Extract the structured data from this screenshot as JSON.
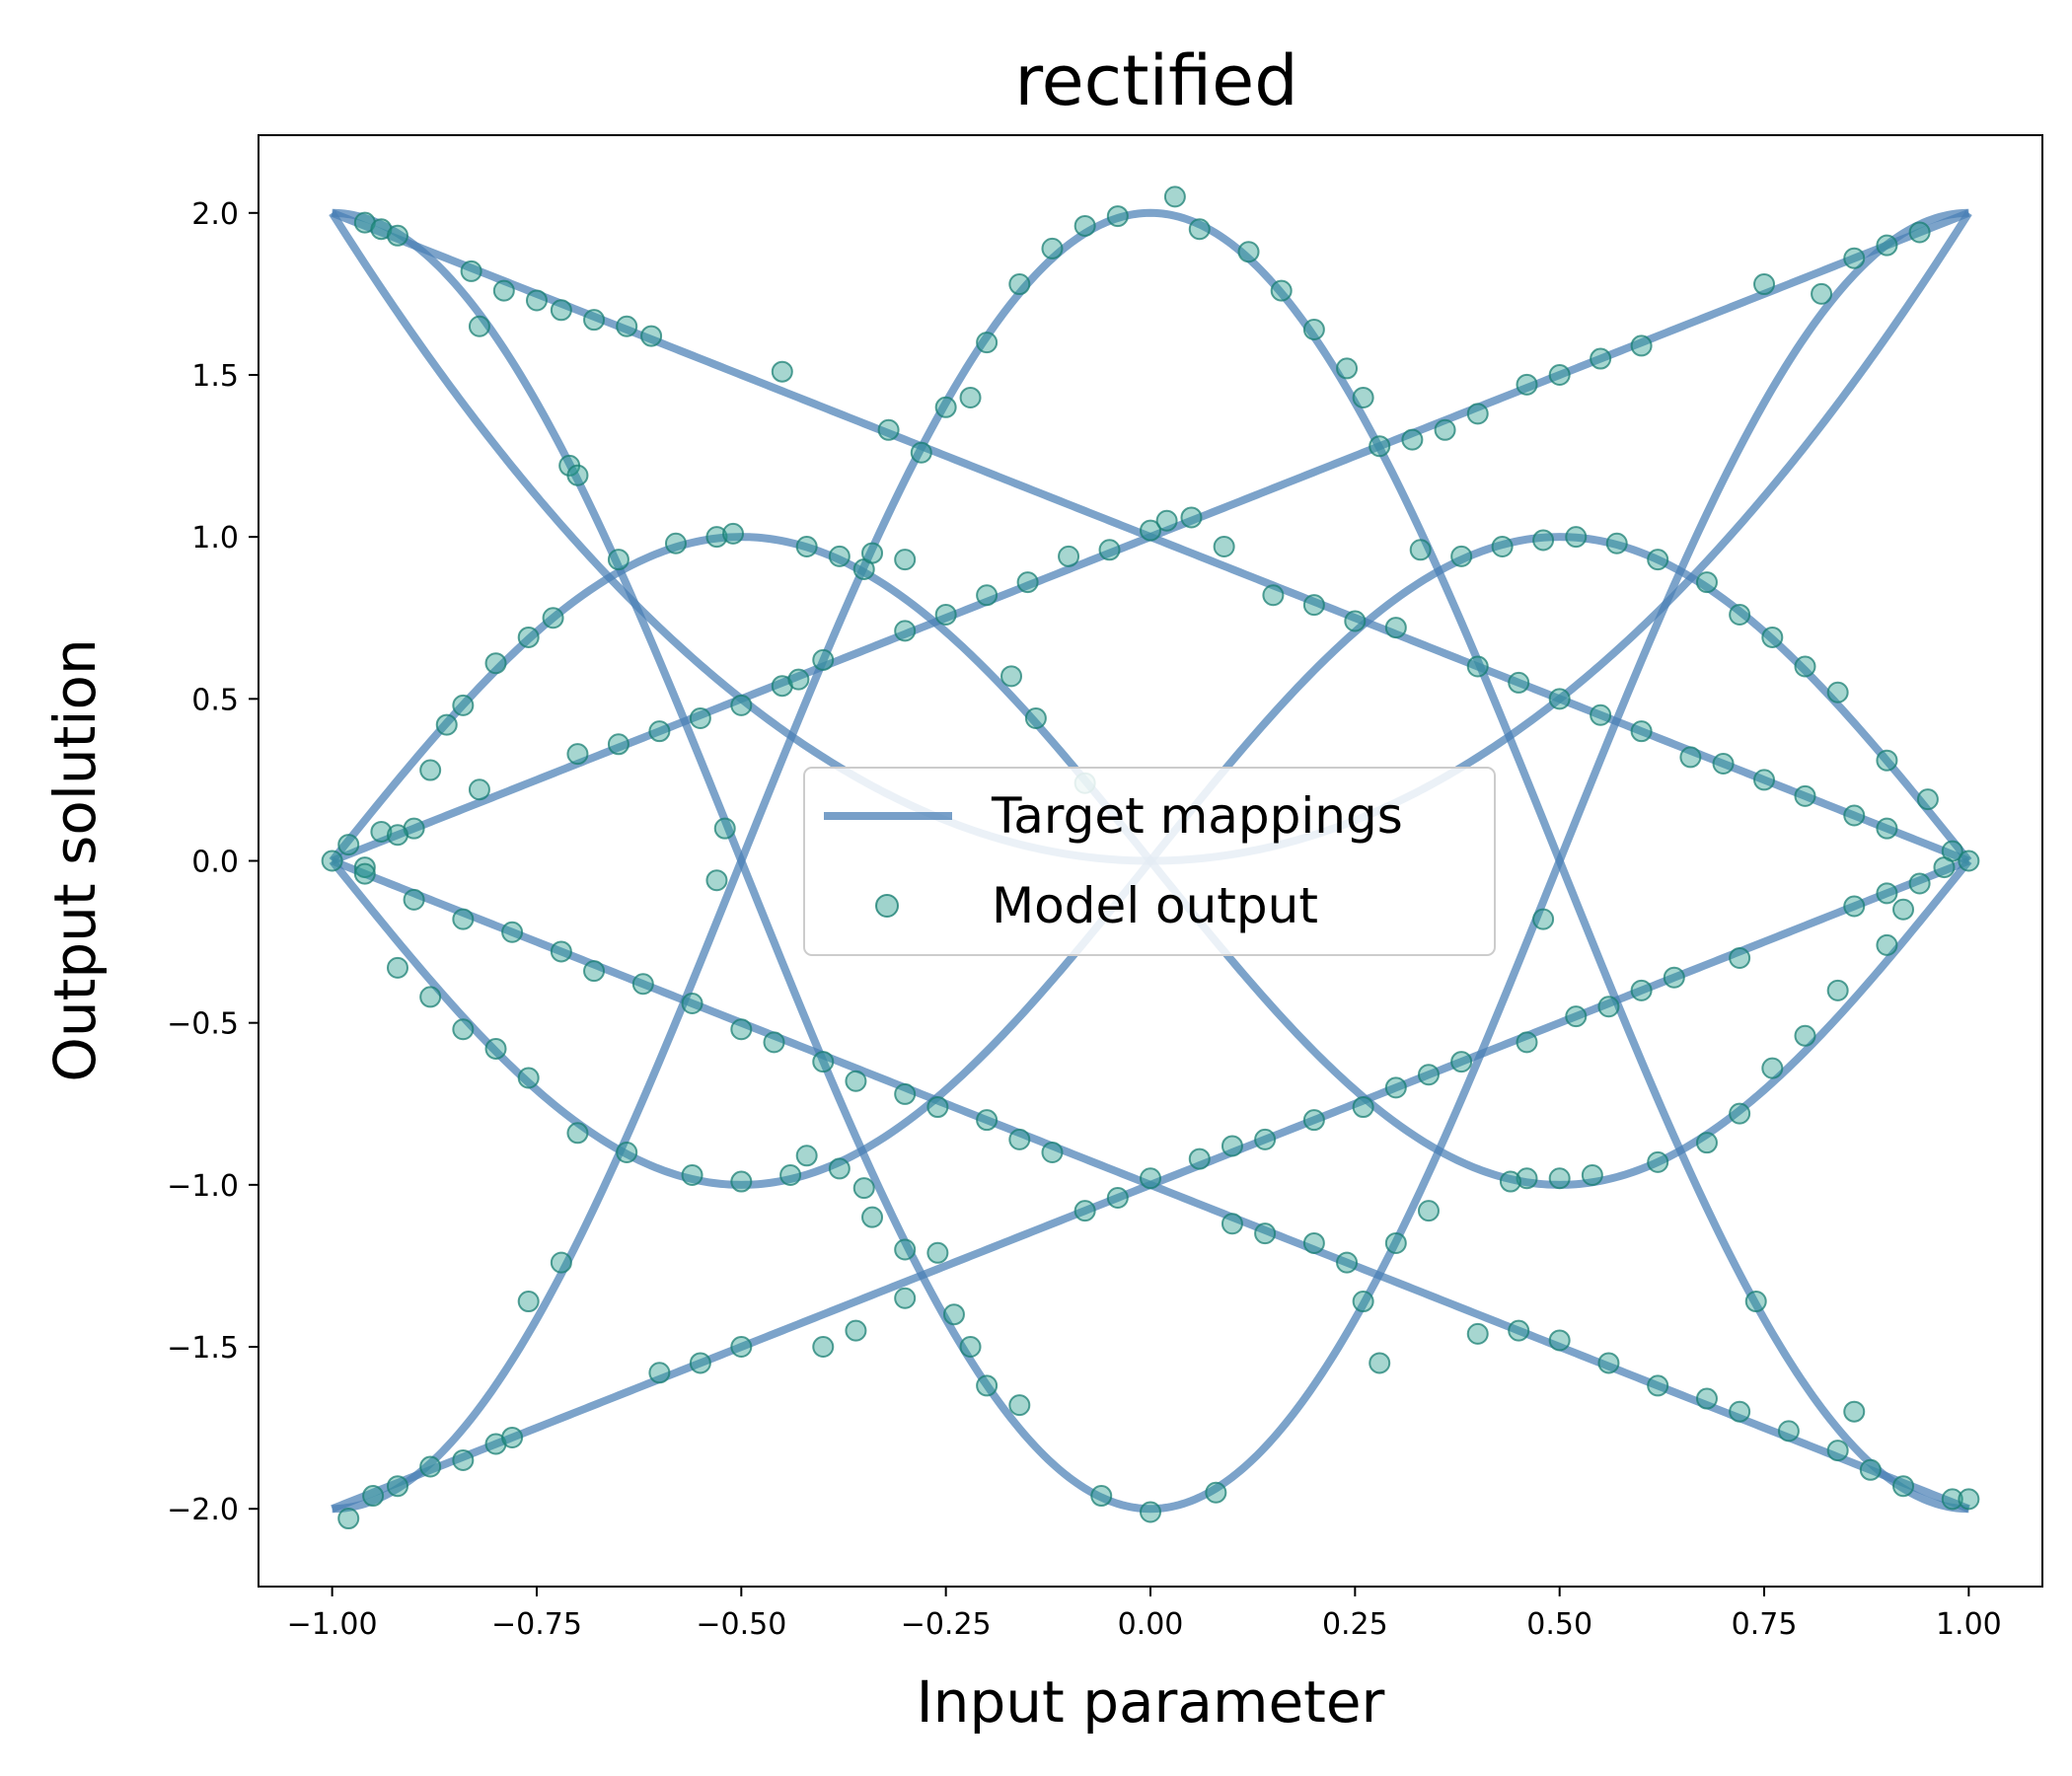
{
  "chart_data": {
    "type": "line+scatter",
    "title": "rectified",
    "xlabel": "Input parameter",
    "ylabel": "Output solution",
    "xlim": [
      -1.09,
      1.09
    ],
    "ylim": [
      -2.24,
      2.24
    ],
    "xticks": [
      -1.0,
      -0.75,
      -0.5,
      -0.25,
      0.0,
      0.25,
      0.5,
      0.75,
      1.0
    ],
    "xtick_labels": [
      "−1.00",
      "−0.75",
      "−0.50",
      "−0.25",
      "0.00",
      "0.25",
      "0.50",
      "0.75",
      "1.00"
    ],
    "yticks": [
      -2.0,
      -1.5,
      -1.0,
      -0.5,
      0.0,
      0.5,
      1.0,
      1.5,
      2.0
    ],
    "ytick_labels": [
      "−2.0",
      "−1.5",
      "−1.0",
      "−0.5",
      "0.0",
      "0.5",
      "1.0",
      "1.5",
      "2.0"
    ],
    "grid": false,
    "legend": {
      "placement": "center",
      "entries": [
        {
          "label": "Target mappings",
          "kind": "line",
          "color": "#4a7fb5"
        },
        {
          "label": "Model output",
          "kind": "scatter",
          "color": "#2a9d8f"
        }
      ]
    },
    "line_color": "#4a7fb5",
    "scatter_color": "#2a9d8f",
    "target_series": [
      {
        "label": "Target mappings",
        "formula": "2x^2",
        "x_range": [
          -1.0,
          1.0
        ],
        "x": [
          -1.0,
          -0.75,
          -0.5,
          -0.25,
          0.0,
          0.25,
          0.5,
          0.75,
          1.0
        ],
        "y": [
          2.0,
          1.125,
          0.5,
          0.125,
          0.0,
          0.125,
          0.5,
          1.125,
          2.0
        ]
      }
    ],
    "target_curves": [
      "x+1",
      "-(x+1)",
      "1-x",
      "x-1",
      "2cos(pi x)",
      "-2cos(pi x)",
      "|sin(pi x)|",
      "-|sin(pi x)|"
    ],
    "scatter_points": [
      [
        -1.0,
        0.0
      ],
      [
        -0.98,
        0.05
      ],
      [
        -0.96,
        -0.02
      ],
      [
        -0.94,
        0.09
      ],
      [
        -0.9,
        0.1
      ],
      [
        -0.92,
        0.08
      ],
      [
        -0.98,
        -2.03
      ],
      [
        -0.95,
        -1.96
      ],
      [
        -0.92,
        -1.93
      ],
      [
        -0.88,
        -1.87
      ],
      [
        -0.84,
        -1.85
      ],
      [
        -0.8,
        -1.8
      ],
      [
        -0.78,
        -1.78
      ],
      [
        -0.96,
        1.97
      ],
      [
        -0.94,
        1.95
      ],
      [
        -0.92,
        1.93
      ],
      [
        -0.83,
        1.82
      ],
      [
        -0.82,
        1.65
      ],
      [
        -0.79,
        1.76
      ],
      [
        -0.75,
        1.73
      ],
      [
        -0.72,
        1.7
      ],
      [
        -0.68,
        1.67
      ],
      [
        -0.64,
        1.65
      ],
      [
        -0.61,
        1.62
      ],
      [
        -0.45,
        1.51
      ],
      [
        -0.88,
        0.28
      ],
      [
        -0.86,
        0.42
      ],
      [
        -0.84,
        0.48
      ],
      [
        -0.8,
        0.61
      ],
      [
        -0.76,
        0.69
      ],
      [
        -0.73,
        0.75
      ],
      [
        -0.71,
        1.22
      ],
      [
        -0.7,
        1.19
      ],
      [
        -0.65,
        0.93
      ],
      [
        -0.58,
        0.98
      ],
      [
        -0.53,
        1.0
      ],
      [
        -0.51,
        1.01
      ],
      [
        -0.82,
        0.22
      ],
      [
        -0.7,
        0.33
      ],
      [
        -0.65,
        0.36
      ],
      [
        -0.6,
        0.4
      ],
      [
        -0.55,
        0.44
      ],
      [
        -0.5,
        0.48
      ],
      [
        -0.45,
        0.54
      ],
      [
        -0.43,
        0.56
      ],
      [
        -0.4,
        0.62
      ],
      [
        -0.35,
        0.9
      ],
      [
        -0.3,
        0.71
      ],
      [
        -0.25,
        0.76
      ],
      [
        -0.2,
        0.82
      ],
      [
        -0.15,
        0.86
      ],
      [
        -0.1,
        0.94
      ],
      [
        -0.05,
        0.96
      ],
      [
        -0.53,
        -0.06
      ],
      [
        -0.52,
        0.1
      ],
      [
        -0.42,
        0.97
      ],
      [
        -0.38,
        0.94
      ],
      [
        -0.34,
        0.95
      ],
      [
        -0.3,
        0.93
      ],
      [
        -0.17,
        0.57
      ],
      [
        -0.14,
        0.44
      ],
      [
        -0.08,
        0.24
      ],
      [
        -0.32,
        1.33
      ],
      [
        -0.28,
        1.26
      ],
      [
        -0.25,
        1.4
      ],
      [
        -0.22,
        1.43
      ],
      [
        -0.2,
        1.6
      ],
      [
        -0.16,
        1.78
      ],
      [
        -0.12,
        1.89
      ],
      [
        -0.08,
        1.96
      ],
      [
        -0.04,
        1.99
      ],
      [
        0.03,
        2.05
      ],
      [
        0.06,
        1.95
      ],
      [
        0.12,
        1.88
      ],
      [
        0.16,
        1.76
      ],
      [
        0.2,
        1.64
      ],
      [
        0.24,
        1.52
      ],
      [
        0.26,
        1.43
      ],
      [
        0.28,
        1.28
      ],
      [
        0.32,
        1.3
      ],
      [
        0.36,
        1.33
      ],
      [
        0.4,
        1.38
      ],
      [
        0.46,
        1.47
      ],
      [
        0.5,
        1.5
      ],
      [
        0.55,
        1.55
      ],
      [
        0.6,
        1.59
      ],
      [
        0.75,
        1.78
      ],
      [
        0.82,
        1.75
      ],
      [
        0.86,
        1.86
      ],
      [
        0.9,
        1.9
      ],
      [
        0.94,
        1.94
      ],
      [
        0.0,
        1.02
      ],
      [
        0.02,
        1.05
      ],
      [
        0.05,
        1.06
      ],
      [
        0.09,
        0.97
      ],
      [
        0.15,
        0.82
      ],
      [
        0.2,
        0.79
      ],
      [
        0.25,
        0.74
      ],
      [
        0.3,
        0.72
      ],
      [
        0.33,
        0.96
      ],
      [
        0.38,
        0.94
      ],
      [
        0.43,
        0.97
      ],
      [
        0.48,
        0.99
      ],
      [
        0.52,
        1.0
      ],
      [
        0.57,
        0.98
      ],
      [
        0.62,
        0.93
      ],
      [
        0.68,
        0.86
      ],
      [
        0.72,
        0.76
      ],
      [
        0.76,
        0.69
      ],
      [
        0.8,
        0.6
      ],
      [
        0.84,
        0.52
      ],
      [
        0.9,
        0.31
      ],
      [
        0.95,
        0.19
      ],
      [
        0.4,
        0.6
      ],
      [
        0.45,
        0.55
      ],
      [
        0.5,
        0.5
      ],
      [
        0.55,
        0.45
      ],
      [
        0.6,
        0.4
      ],
      [
        0.66,
        0.32
      ],
      [
        0.7,
        0.3
      ],
      [
        0.75,
        0.25
      ],
      [
        0.8,
        0.2
      ],
      [
        0.86,
        0.14
      ],
      [
        0.9,
        0.1
      ],
      [
        0.98,
        0.03
      ],
      [
        1.0,
        0.0
      ],
      [
        0.97,
        -0.02
      ],
      [
        0.94,
        -0.07
      ],
      [
        0.9,
        -0.1
      ],
      [
        0.86,
        -0.14
      ],
      [
        0.92,
        -0.15
      ],
      [
        0.9,
        -0.26
      ],
      [
        0.84,
        -0.4
      ],
      [
        0.8,
        -0.54
      ],
      [
        0.76,
        -0.64
      ],
      [
        0.72,
        -0.78
      ],
      [
        0.68,
        -0.87
      ],
      [
        0.62,
        -0.93
      ],
      [
        0.54,
        -0.97
      ],
      [
        0.5,
        -0.98
      ],
      [
        0.46,
        -0.98
      ],
      [
        0.44,
        -0.99
      ],
      [
        0.48,
        -0.18
      ],
      [
        0.56,
        -0.45
      ],
      [
        0.72,
        -0.3
      ],
      [
        0.64,
        -0.36
      ],
      [
        0.6,
        -0.4
      ],
      [
        0.52,
        -0.48
      ],
      [
        0.46,
        -0.56
      ],
      [
        0.38,
        -0.62
      ],
      [
        0.34,
        -0.66
      ],
      [
        0.3,
        -0.7
      ],
      [
        0.26,
        -0.76
      ],
      [
        0.2,
        -0.8
      ],
      [
        0.14,
        -0.86
      ],
      [
        0.1,
        -0.88
      ],
      [
        0.06,
        -0.92
      ],
      [
        0.0,
        -0.98
      ],
      [
        -0.04,
        -1.04
      ],
      [
        -0.08,
        -1.08
      ],
      [
        -0.12,
        -0.9
      ],
      [
        -0.16,
        -0.86
      ],
      [
        -0.2,
        -0.8
      ],
      [
        -0.26,
        -0.76
      ],
      [
        -0.3,
        -0.72
      ],
      [
        -0.36,
        -0.68
      ],
      [
        -0.4,
        -0.62
      ],
      [
        -0.46,
        -0.56
      ],
      [
        -0.5,
        -0.52
      ],
      [
        -0.56,
        -0.44
      ],
      [
        -0.62,
        -0.38
      ],
      [
        -0.68,
        -0.34
      ],
      [
        -0.72,
        -0.28
      ],
      [
        -0.78,
        -0.22
      ],
      [
        -0.84,
        -0.18
      ],
      [
        -0.9,
        -0.12
      ],
      [
        -0.96,
        -0.04
      ],
      [
        -0.92,
        -0.33
      ],
      [
        -0.88,
        -0.42
      ],
      [
        -0.84,
        -0.52
      ],
      [
        -0.8,
        -0.58
      ],
      [
        -0.76,
        -0.67
      ],
      [
        -0.7,
        -0.84
      ],
      [
        -0.64,
        -0.9
      ],
      [
        -0.56,
        -0.97
      ],
      [
        -0.5,
        -0.99
      ],
      [
        -0.44,
        -0.97
      ],
      [
        -0.38,
        -0.95
      ],
      [
        -0.35,
        -1.01
      ],
      [
        -0.42,
        -0.91
      ],
      [
        -0.4,
        -1.5
      ],
      [
        -0.36,
        -1.45
      ],
      [
        -0.3,
        -1.35
      ],
      [
        -0.26,
        -1.21
      ],
      [
        -0.24,
        -1.4
      ],
      [
        -0.22,
        -1.5
      ],
      [
        -0.2,
        -1.62
      ],
      [
        -0.16,
        -1.68
      ],
      [
        -0.06,
        -1.96
      ],
      [
        0.0,
        -2.01
      ],
      [
        0.08,
        -1.95
      ],
      [
        -0.55,
        -1.55
      ],
      [
        -0.6,
        -1.58
      ],
      [
        -0.5,
        -1.5
      ],
      [
        -0.34,
        -1.1
      ],
      [
        -0.3,
        -1.2
      ],
      [
        -0.72,
        -1.24
      ],
      [
        -0.76,
        -1.36
      ],
      [
        0.1,
        -1.12
      ],
      [
        0.14,
        -1.15
      ],
      [
        0.2,
        -1.18
      ],
      [
        0.24,
        -1.24
      ],
      [
        0.26,
        -1.36
      ],
      [
        0.28,
        -1.55
      ],
      [
        0.3,
        -1.18
      ],
      [
        0.34,
        -1.08
      ],
      [
        0.4,
        -1.46
      ],
      [
        0.45,
        -1.45
      ],
      [
        0.5,
        -1.48
      ],
      [
        0.56,
        -1.55
      ],
      [
        0.62,
        -1.62
      ],
      [
        0.68,
        -1.66
      ],
      [
        0.72,
        -1.7
      ],
      [
        0.78,
        -1.76
      ],
      [
        0.84,
        -1.82
      ],
      [
        0.88,
        -1.88
      ],
      [
        0.92,
        -1.93
      ],
      [
        0.98,
        -1.97
      ],
      [
        1.0,
        -1.97
      ],
      [
        0.74,
        -1.36
      ],
      [
        0.86,
        -1.7
      ]
    ]
  }
}
